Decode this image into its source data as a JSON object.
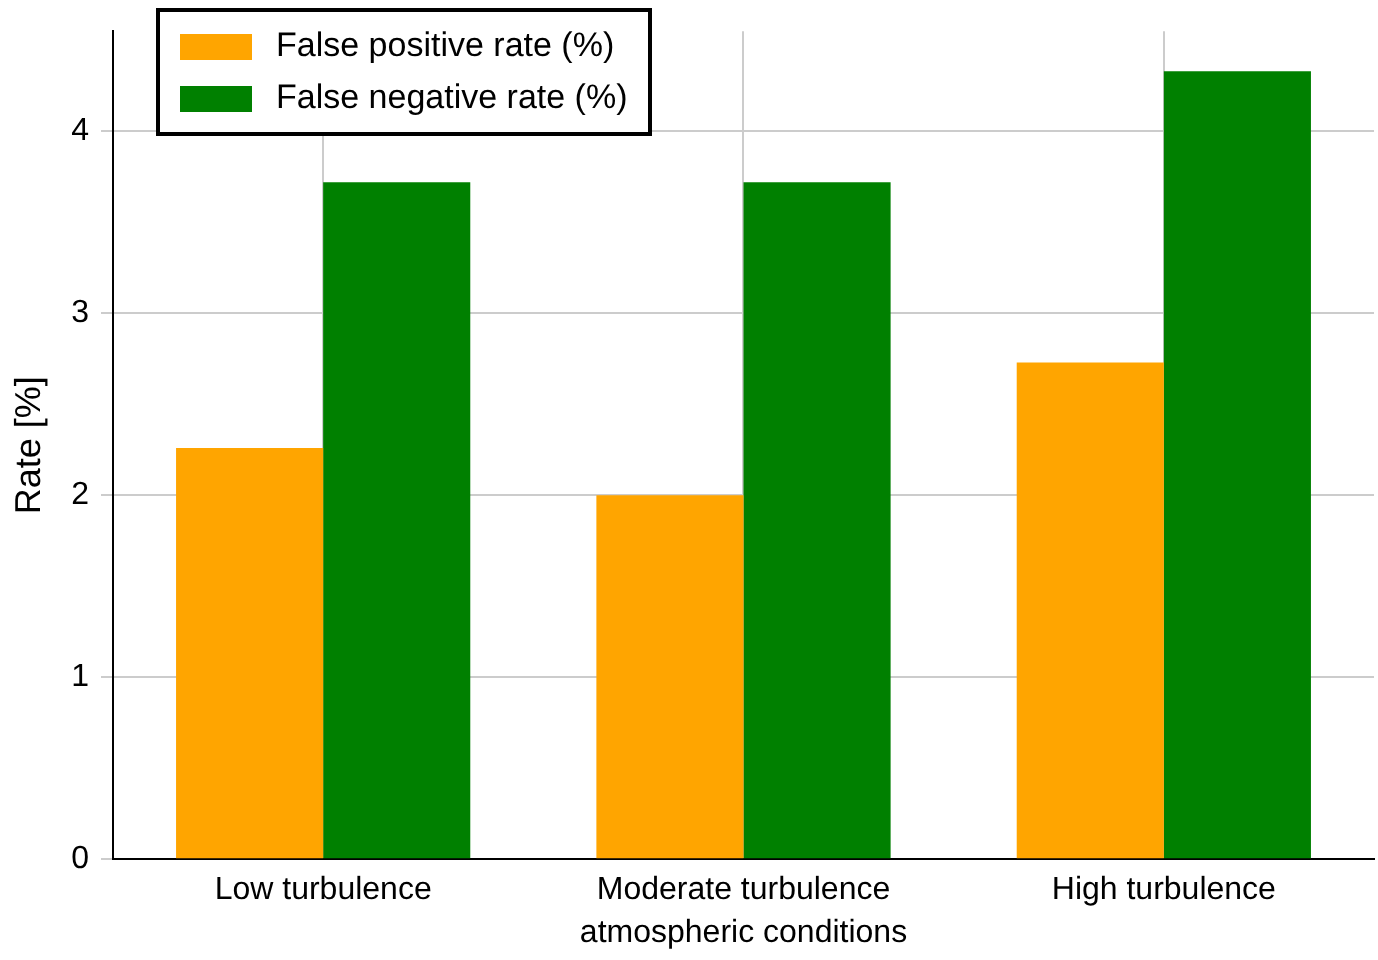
{
  "chart_data": {
    "type": "bar",
    "xlabel": "atmospheric conditions",
    "ylabel": "Rate [%]",
    "categories": [
      "Low turbulence",
      "Moderate turbulence",
      "High turbulence"
    ],
    "series": [
      {
        "name": "False positive rate (%)",
        "color": "#ffa500",
        "values": [
          2.26,
          2.0,
          2.73
        ]
      },
      {
        "name": "False negative rate (%)",
        "color": "#008000",
        "values": [
          3.72,
          3.72,
          4.33
        ]
      }
    ],
    "ylim": [
      0,
      4.55
    ],
    "yticks": [
      0,
      1,
      2,
      3,
      4
    ],
    "grid": true,
    "legend": "top left"
  }
}
